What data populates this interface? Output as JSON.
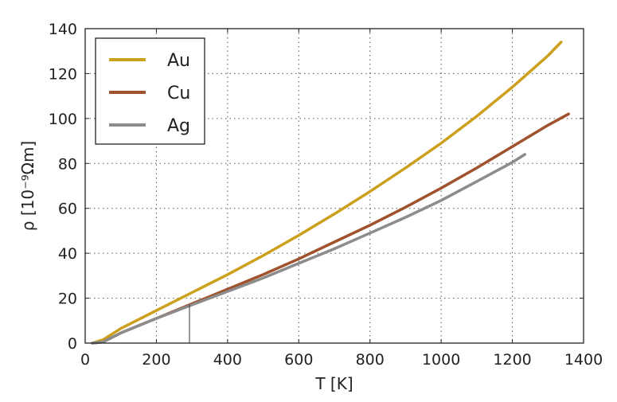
{
  "chart_data": {
    "type": "line",
    "title": "",
    "xlabel": "T [K]",
    "ylabel": "ρ [10⁻⁹Ωm]",
    "xlim": [
      0,
      1400
    ],
    "ylim": [
      0,
      140
    ],
    "xticks": [
      0,
      200,
      400,
      600,
      800,
      1000,
      1200,
      1400
    ],
    "yticks": [
      0,
      20,
      40,
      60,
      80,
      100,
      120,
      140
    ],
    "grid": true,
    "legend_position": "top-left",
    "marker_x": 293,
    "series": [
      {
        "name": "Au",
        "color": "#CCA01D",
        "points": [
          [
            20,
            0
          ],
          [
            50,
            1.5
          ],
          [
            100,
            6.5
          ],
          [
            200,
            14.5
          ],
          [
            300,
            22.5
          ],
          [
            400,
            30.5
          ],
          [
            500,
            39
          ],
          [
            600,
            48
          ],
          [
            700,
            57.5
          ],
          [
            800,
            67.5
          ],
          [
            900,
            78
          ],
          [
            1000,
            89
          ],
          [
            1100,
            101
          ],
          [
            1200,
            114
          ],
          [
            1300,
            128
          ],
          [
            1337,
            134
          ]
        ]
      },
      {
        "name": "Cu",
        "color": "#A0522D",
        "points": [
          [
            20,
            0
          ],
          [
            50,
            0.5
          ],
          [
            100,
            4.5
          ],
          [
            200,
            11
          ],
          [
            300,
            17.5
          ],
          [
            400,
            24
          ],
          [
            500,
            30.5
          ],
          [
            600,
            37.5
          ],
          [
            700,
            45
          ],
          [
            800,
            52.5
          ],
          [
            900,
            60.5
          ],
          [
            1000,
            69
          ],
          [
            1100,
            78
          ],
          [
            1200,
            87.5
          ],
          [
            1300,
            97
          ],
          [
            1358,
            102
          ]
        ]
      },
      {
        "name": "Ag",
        "color": "#8C8C8C",
        "points": [
          [
            20,
            0
          ],
          [
            50,
            0.5
          ],
          [
            100,
            4.5
          ],
          [
            200,
            11
          ],
          [
            300,
            17
          ],
          [
            400,
            23
          ],
          [
            500,
            29
          ],
          [
            600,
            35.5
          ],
          [
            700,
            42
          ],
          [
            800,
            49
          ],
          [
            900,
            56
          ],
          [
            1000,
            63.5
          ],
          [
            1100,
            72
          ],
          [
            1200,
            80.5
          ],
          [
            1235,
            84
          ]
        ]
      }
    ]
  }
}
